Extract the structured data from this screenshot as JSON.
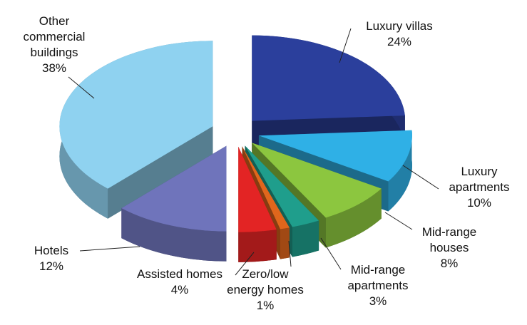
{
  "chart_data": {
    "type": "pie",
    "categories": [
      "Luxury villas",
      "Luxury\napartments",
      "Mid-range\nhouses",
      "Mid-range\napartments",
      "Zero/low\nenergy homes",
      "Assisted homes",
      "Hotels",
      "Other\ncommercial\nbuildings"
    ],
    "values": [
      24,
      10,
      8,
      3,
      1,
      4,
      12,
      38
    ],
    "value_labels": [
      "24%",
      "10%",
      "8%",
      "3%",
      "1%",
      "4%",
      "12%",
      "38%"
    ],
    "colors": [
      "#2b3f9c",
      "#2fb0e6",
      "#8cc63f",
      "#1f9e8c",
      "#e0661c",
      "#e32424",
      "#6f74bb",
      "#8fd2f0"
    ]
  }
}
